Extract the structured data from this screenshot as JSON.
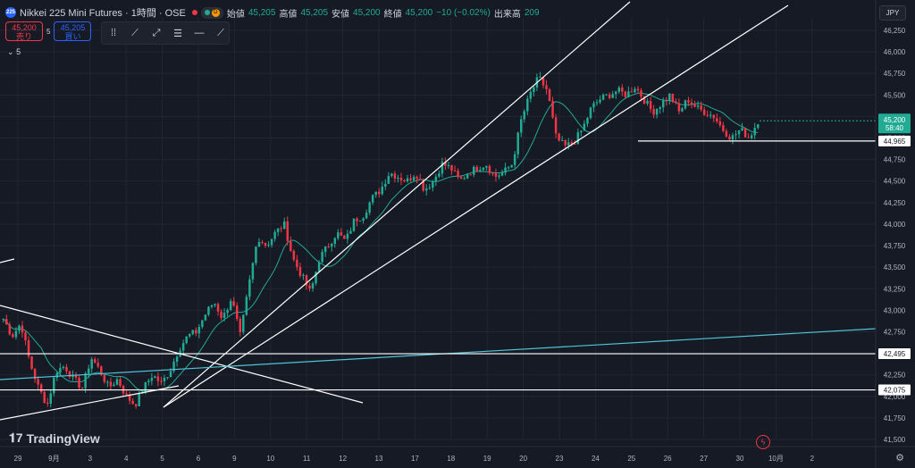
{
  "header": {
    "symbol_badge": "225",
    "title": "Nikkei 225 Mini Futures · 1時間 · OSE",
    "status_d": "D",
    "open_label": "始値",
    "open": "45,205",
    "high_label": "高値",
    "high": "45,205",
    "low_label": "安値",
    "low": "45,200",
    "close_label": "終値",
    "close": "45,200",
    "change": "−10 (−0.02%)",
    "volume_label": "出来高",
    "volume": "209"
  },
  "trade": {
    "sell_price": "45,200",
    "sell_label": "売り",
    "spread": "5",
    "buy_price": "45,205",
    "buy_label": "買い"
  },
  "indicators_collapsed": "5",
  "currency": "JPY",
  "brand": "TradingView",
  "colors": {
    "up": "#22ab94",
    "down": "#f23645",
    "bg": "#161a25",
    "ma": "#22ab94",
    "price_tag": "#22ab94",
    "drawing": "#ffffff",
    "blue_line": "#4fc3d9"
  },
  "tools": [
    "trend-line-tool",
    "ray-tool",
    "parallel-channel-tool",
    "horizontal-line-tool",
    "horizontal-ray-tool",
    "extended-line-tool"
  ],
  "chart_data": {
    "type": "candlestick",
    "ylim": [
      41500,
      46500
    ],
    "y_ticks": [
      "46,250",
      "46,000",
      "45,750",
      "45,500",
      "45,250",
      "45,000",
      "44,750",
      "44,500",
      "44,250",
      "44,000",
      "43,750",
      "43,500",
      "43,250",
      "43,000",
      "42,750",
      "42,500",
      "42,250",
      "42,000",
      "41,750",
      "41,500"
    ],
    "x_ticks": [
      "29",
      "9月",
      "3",
      "4",
      "5",
      "6",
      "9",
      "10",
      "11",
      "12",
      "13",
      "17",
      "18",
      "19",
      "20",
      "23",
      "24",
      "25",
      "26",
      "27",
      "30",
      "10月",
      "2"
    ],
    "last_price": "45,200",
    "countdown": "58:40",
    "horizontal_levels": [
      "44,965",
      "42,495",
      "42,075"
    ],
    "close_path": [
      42900,
      42700,
      42850,
      42400,
      42100,
      41900,
      42300,
      42350,
      42200,
      42100,
      42450,
      42300,
      42100,
      42200,
      42000,
      41900,
      42100,
      42250,
      42150,
      42300,
      42550,
      42700,
      42750,
      42950,
      43100,
      42900,
      43150,
      42700,
      43300,
      43850,
      43750,
      43900,
      44000,
      43600,
      43400,
      43200,
      43600,
      43750,
      43900,
      43800,
      44050,
      44100,
      44300,
      44400,
      44600,
      44550,
      44500,
      44600,
      44400,
      44500,
      44700,
      44650,
      44500,
      44600,
      44650,
      44700,
      44550,
      44600,
      44700,
      45200,
      45500,
      45700,
      45550,
      45000,
      44900,
      44950,
      45100,
      45350,
      45450,
      45500,
      45550,
      45500,
      45600,
      45450,
      45300,
      45400,
      45500,
      45300,
      45450,
      45350,
      45300,
      45250,
      45100,
      45000,
      45100,
      45000,
      45200
    ]
  }
}
